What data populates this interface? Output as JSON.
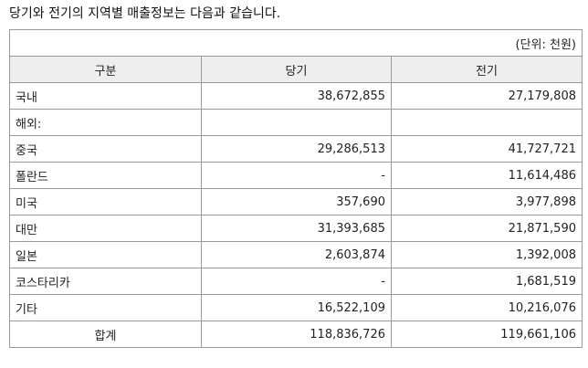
{
  "intro": "당기와 전기의 지역별 매출정보는 다음과 같습니다.",
  "unit": "(단위: 천원)",
  "headers": {
    "category": "구분",
    "current": "당기",
    "prior": "전기"
  },
  "rows": [
    {
      "label": "국내",
      "current": "38,672,855",
      "prior": "27,179,808"
    },
    {
      "label": "해외:",
      "current": "",
      "prior": ""
    },
    {
      "label": "중국",
      "current": "29,286,513",
      "prior": "41,727,721"
    },
    {
      "label": "폴란드",
      "current": "-",
      "prior": "11,614,486"
    },
    {
      "label": "미국",
      "current": "357,690",
      "prior": "3,977,898"
    },
    {
      "label": "대만",
      "current": "31,393,685",
      "prior": "21,871,590"
    },
    {
      "label": "일본",
      "current": "2,603,874",
      "prior": "1,392,008"
    },
    {
      "label": "코스타리카",
      "current": "-",
      "prior": "1,681,519"
    },
    {
      "label": "기타",
      "current": "16,522,109",
      "prior": "10,216,076"
    },
    {
      "label": "합계",
      "current": "118,836,726",
      "prior": "119,661,106"
    }
  ]
}
